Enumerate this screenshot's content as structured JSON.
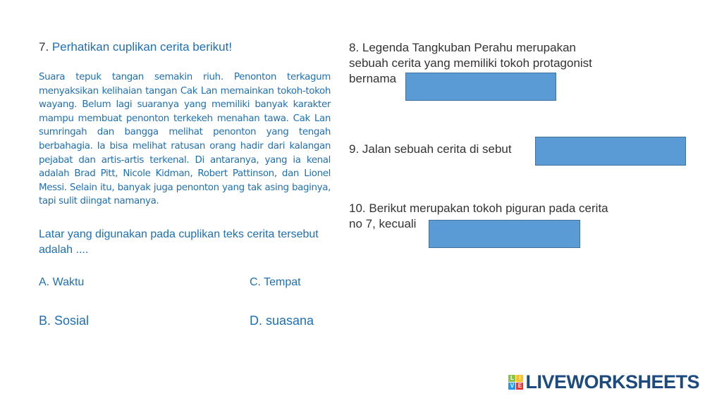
{
  "q7": {
    "number": "7.",
    "title": "Perhatikan cuplikan cerita berikut!",
    "passage": "Suara tepuk tangan semakin riuh. Penonton terkagum menyaksikan kelihaian tangan Cak Lan memainkan tokoh-tokoh wayang. Belum lagi suaranya yang memiliki banyak karakter mampu membuat penonton terkekeh menahan tawa. Cak Lan sumringah dan bangga melihat penonton yang tengah berbahagia. Ia bisa melihat ratusan orang hadir dari kalangan pejabat dan artis-artis terkenal. Di antaranya, yang ia kenal adalah Brad Pitt, Nicole Kidman, Robert Pattinson, dan Lionel Messi. Selain itu, banyak juga penonton yang tak asing baginya, tapi sulit diingat namanya.",
    "question": "Latar yang digunakan pada cuplikan teks cerita tersebut adalah ....",
    "options": {
      "a": "A.   Waktu",
      "b": "B. Sosial",
      "c": "C. Tempat",
      "d": "D. suasana"
    }
  },
  "q8": {
    "line1": "8. Legenda Tangkuban Perahu merupakan",
    "line2": "sebuah cerita yang memiliki tokoh protagonist",
    "line3": "bernama",
    "answer": ""
  },
  "q9": {
    "text": "9. Jalan sebuah cerita di sebut",
    "answer": ""
  },
  "q10": {
    "line1": "10. Berikut merupakan tokoh piguran pada cerita",
    "line2": "no 7, kecuali",
    "answer": ""
  },
  "logo": {
    "text": "LIVEWORKSHEETS",
    "mark": [
      "L",
      "I",
      "V",
      "E"
    ]
  },
  "colors": {
    "text_blue": "#1f6fb5",
    "answer_box": "#5b9bd5",
    "logo": "#1d4a7f"
  }
}
